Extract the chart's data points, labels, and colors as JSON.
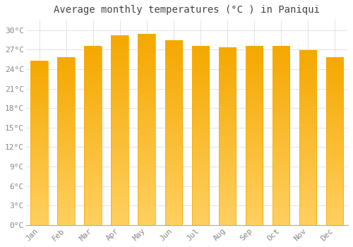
{
  "title": "Average monthly temperatures (°C ) in Paniqui",
  "months": [
    "Jan",
    "Feb",
    "Mar",
    "Apr",
    "May",
    "Jun",
    "Jul",
    "Aug",
    "Sep",
    "Oct",
    "Nov",
    "Dec"
  ],
  "values": [
    25.3,
    25.8,
    27.5,
    29.2,
    29.4,
    28.4,
    27.6,
    27.3,
    27.5,
    27.5,
    26.9,
    25.8
  ],
  "bar_color_top": "#F5A800",
  "bar_color_bottom": "#FFD060",
  "background_color": "#FFFFFF",
  "plot_bg_color": "#FFFFFF",
  "grid_color": "#DDDDDD",
  "ytick_labels": [
    "0°C",
    "3°C",
    "6°C",
    "9°C",
    "12°C",
    "15°C",
    "18°C",
    "21°C",
    "24°C",
    "27°C",
    "30°C"
  ],
  "ytick_values": [
    0,
    3,
    6,
    9,
    12,
    15,
    18,
    21,
    24,
    27,
    30
  ],
  "ylim": [
    0,
    31.5
  ],
  "title_fontsize": 10,
  "tick_fontsize": 8,
  "title_color": "#444444",
  "tick_color": "#888888"
}
